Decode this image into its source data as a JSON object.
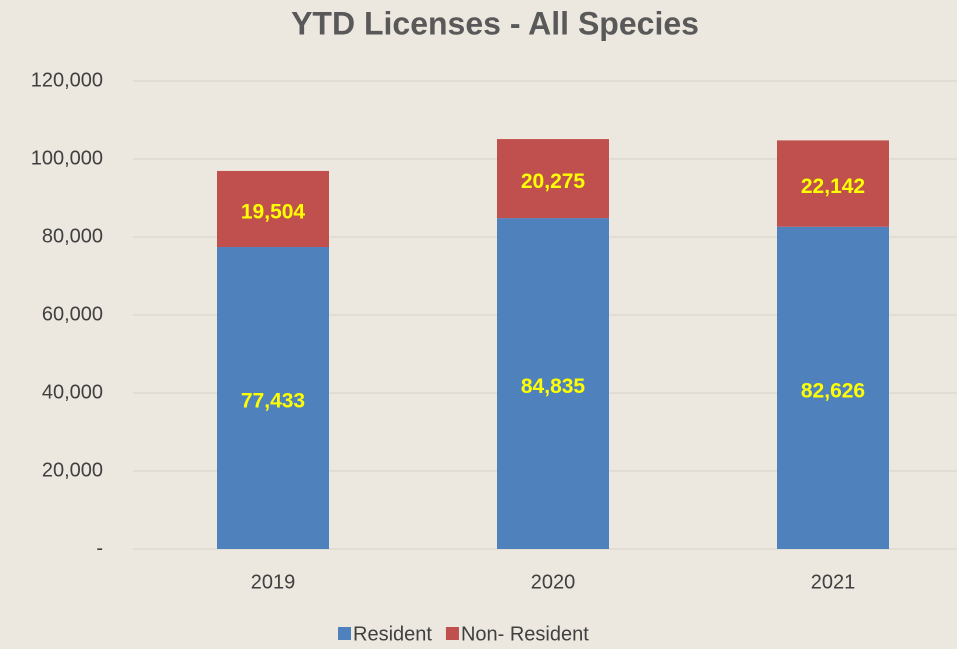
{
  "chart_data": {
    "type": "stacked_bar",
    "title": "YTD Licenses - All Species",
    "categories": [
      "2019",
      "2020",
      "2021"
    ],
    "series": [
      {
        "name": "Resident",
        "color": "#4f81bd",
        "values": [
          77433,
          84835,
          82626
        ],
        "value_labels": [
          "77,433",
          "84,835",
          "82,626"
        ]
      },
      {
        "name": "Non- Resident",
        "color": "#c0504d",
        "values": [
          19504,
          20275,
          22142
        ],
        "value_labels": [
          "19,504",
          "20,275",
          "22,142"
        ]
      }
    ],
    "ylim": [
      0,
      120000
    ],
    "yticks": [
      {
        "value": 0,
        "label": "-"
      },
      {
        "value": 20000,
        "label": "20,000"
      },
      {
        "value": 40000,
        "label": "40,000"
      },
      {
        "value": 60000,
        "label": "60,000"
      },
      {
        "value": 80000,
        "label": "80,000"
      },
      {
        "value": 100000,
        "label": "100,000"
      },
      {
        "value": 120000,
        "label": "120,000"
      }
    ],
    "grid": true,
    "legend": "bottom"
  }
}
